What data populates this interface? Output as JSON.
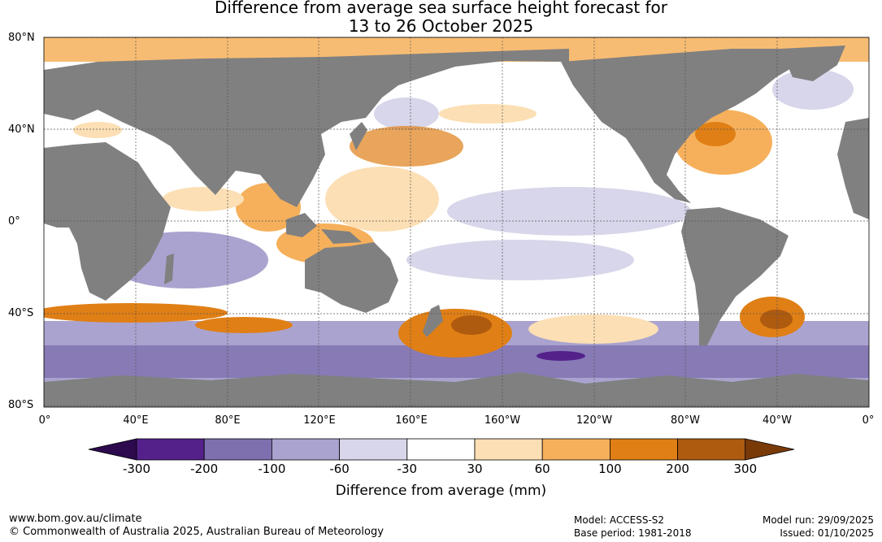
{
  "title": {
    "line1": "Difference from average sea surface height forecast for",
    "line2": "13 to 26 October 2025"
  },
  "map": {
    "lat_labels": [
      "80°N",
      "40°N",
      "0°",
      "40°S",
      "80°S"
    ],
    "lon_labels": [
      "0°",
      "40°E",
      "80°E",
      "120°E",
      "160°E",
      "160°W",
      "120°W",
      "80°W",
      "40°W",
      "0°"
    ],
    "land_color": "#808080",
    "ocean_color": "#ffffff"
  },
  "colorbar": {
    "title": "Difference from average (mm)",
    "ticks": [
      "-300",
      "-200",
      "-100",
      "-60",
      "-30",
      "30",
      "60",
      "100",
      "200",
      "300"
    ],
    "colors": {
      "under": "#2d0a4e",
      "bins": [
        "#54218a",
        "#7e6fae",
        "#aaa3cf",
        "#d7d6ea",
        "#ffffff",
        "#fcdfb4",
        "#f6b05b",
        "#e07f15",
        "#ae5a0f"
      ],
      "over": "#7a3a08"
    }
  },
  "footer": {
    "website": "www.bom.gov.au/climate",
    "copyright": "© Commonwealth of Australia 2025, Australian Bureau of Meteorology",
    "model": "Model: ACCESS-S2",
    "base_period": "Base period: 1981-2018",
    "model_run": "Model run: 29/09/2025",
    "issued": "Issued: 01/10/2025"
  }
}
